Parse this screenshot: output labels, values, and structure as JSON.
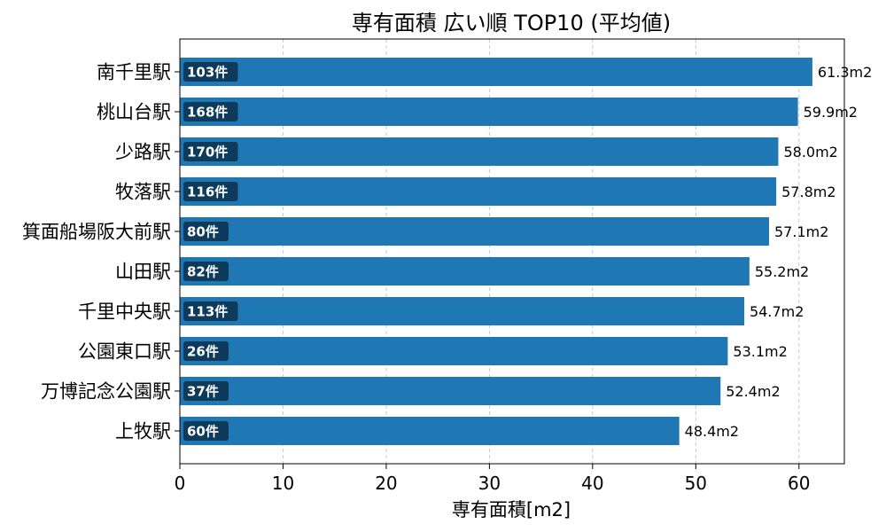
{
  "chart_data": {
    "type": "bar",
    "orientation": "horizontal",
    "title": "専有面積 広い順 TOP10 (平均値)",
    "xlabel": "専有面積[m2]",
    "ylabel": "",
    "xlim": [
      0,
      64.4
    ],
    "xticks": [
      0,
      10,
      20,
      30,
      40,
      50,
      60
    ],
    "grid": "x-dashed",
    "categories": [
      "南千里駅",
      "桃山台駅",
      "少路駅",
      "牧落駅",
      "箕面船場阪大前駅",
      "山田駅",
      "千里中央駅",
      "公園東口駅",
      "万博記念公園駅",
      "上牧駅"
    ],
    "values": [
      61.3,
      59.9,
      58.0,
      57.8,
      57.1,
      55.2,
      54.7,
      53.1,
      52.4,
      48.4
    ],
    "value_labels": [
      "61.3m2",
      "59.9m2",
      "58.0m2",
      "57.8m2",
      "57.1m2",
      "55.2m2",
      "54.7m2",
      "53.1m2",
      "52.4m2",
      "48.4m2"
    ],
    "counts": [
      "103件",
      "168件",
      "170件",
      "116件",
      "80件",
      "82件",
      "113件",
      "26件",
      "37件",
      "60件"
    ],
    "bar_color": "#1f77b4",
    "count_badge_color": "#0e3a5c"
  }
}
